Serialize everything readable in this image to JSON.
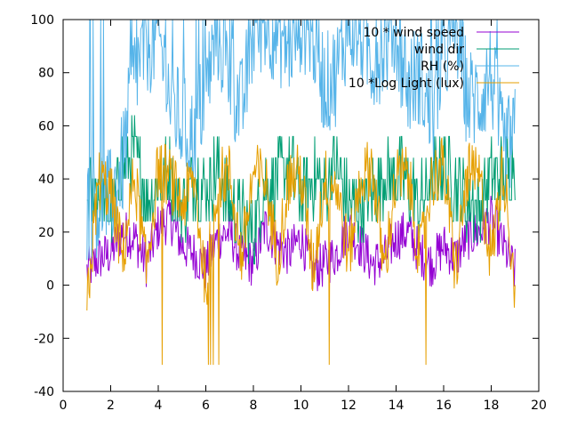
{
  "chart_data": {
    "type": "line",
    "title": "",
    "xlabel": "",
    "ylabel": "",
    "xlim": [
      0,
      20
    ],
    "ylim": [
      -40,
      100
    ],
    "x_ticks": [
      0,
      2,
      4,
      6,
      8,
      10,
      12,
      14,
      16,
      18,
      20
    ],
    "y_ticks": [
      -40,
      -20,
      0,
      20,
      40,
      60,
      80,
      100
    ],
    "grid": false,
    "legend_position": "top-right",
    "x_range_of_data": [
      1.0,
      19.0
    ],
    "series": [
      {
        "name": "10 * wind speed",
        "color": "#9400d3",
        "x": [
          1.0,
          1.5,
          2.0,
          2.5,
          3.0,
          3.5,
          4.0,
          4.5,
          5.0,
          5.5,
          6.0,
          6.5,
          7.0,
          7.5,
          8.0,
          8.5,
          9.0,
          9.5,
          10.0,
          10.5,
          11.0,
          11.5,
          12.0,
          12.5,
          13.0,
          13.5,
          14.0,
          14.5,
          15.0,
          15.5,
          16.0,
          16.5,
          17.0,
          17.5,
          18.0,
          18.5,
          19.0
        ],
        "values": [
          5,
          10,
          12,
          20,
          18,
          8,
          22,
          25,
          15,
          12,
          6,
          18,
          20,
          10,
          8,
          22,
          15,
          12,
          18,
          5,
          8,
          12,
          22,
          15,
          8,
          10,
          18,
          20,
          12,
          8,
          15,
          10,
          18,
          20,
          25,
          15,
          5
        ]
      },
      {
        "name": "wind dir",
        "color": "#009e73",
        "x": [
          1.0,
          1.5,
          2.0,
          2.5,
          3.0,
          3.5,
          4.0,
          4.5,
          5.0,
          5.5,
          6.0,
          6.5,
          7.0,
          7.5,
          8.0,
          8.5,
          9.0,
          9.5,
          10.0,
          10.5,
          11.0,
          11.5,
          12.0,
          12.5,
          13.0,
          13.5,
          14.0,
          14.5,
          15.0,
          15.5,
          16.0,
          16.5,
          17.0,
          17.5,
          18.0,
          18.5,
          19.0
        ],
        "values": [
          32,
          36,
          28,
          45,
          50,
          32,
          38,
          42,
          28,
          40,
          36,
          45,
          30,
          25,
          20,
          38,
          40,
          45,
          35,
          40,
          38,
          45,
          30,
          28,
          35,
          40,
          42,
          38,
          30,
          40,
          45,
          38,
          32,
          30,
          42,
          40,
          48
        ]
      },
      {
        "name": "RH (%)",
        "color": "#56b4e9",
        "x": [
          1.0,
          1.5,
          2.0,
          2.5,
          3.0,
          3.5,
          4.0,
          4.5,
          5.0,
          5.5,
          6.0,
          6.5,
          7.0,
          7.5,
          8.0,
          8.5,
          9.0,
          9.5,
          10.0,
          10.5,
          11.0,
          11.5,
          12.0,
          12.5,
          13.0,
          13.5,
          14.0,
          14.5,
          15.0,
          15.5,
          16.0,
          16.5,
          17.0,
          17.5,
          18.0,
          18.5,
          19.0
        ],
        "values": [
          28,
          30,
          32,
          45,
          80,
          90,
          95,
          70,
          60,
          55,
          75,
          95,
          80,
          65,
          95,
          100,
          95,
          90,
          100,
          95,
          75,
          80,
          100,
          95,
          85,
          90,
          95,
          75,
          80,
          60,
          85,
          100,
          70,
          70,
          80,
          50,
          55
        ]
      },
      {
        "name": "10 *Log Light (lux)",
        "color": "#e69f00",
        "x": [
          1.0,
          1.5,
          2.0,
          2.5,
          3.0,
          3.5,
          4.0,
          4.5,
          5.0,
          5.5,
          6.0,
          6.5,
          7.0,
          7.5,
          8.0,
          8.5,
          9.0,
          9.5,
          10.0,
          10.5,
          11.0,
          11.5,
          12.0,
          12.5,
          13.0,
          13.5,
          14.0,
          14.5,
          15.0,
          15.5,
          16.0,
          16.5,
          17.0,
          17.5,
          18.0,
          18.5,
          19.0
        ],
        "values": [
          -7,
          40,
          35,
          10,
          42,
          5,
          45,
          40,
          30,
          40,
          0,
          40,
          42,
          10,
          42,
          40,
          10,
          40,
          42,
          5,
          40,
          38,
          10,
          40,
          45,
          5,
          40,
          42,
          10,
          40,
          45,
          5,
          42,
          40,
          10,
          45,
          0
        ]
      }
    ]
  }
}
